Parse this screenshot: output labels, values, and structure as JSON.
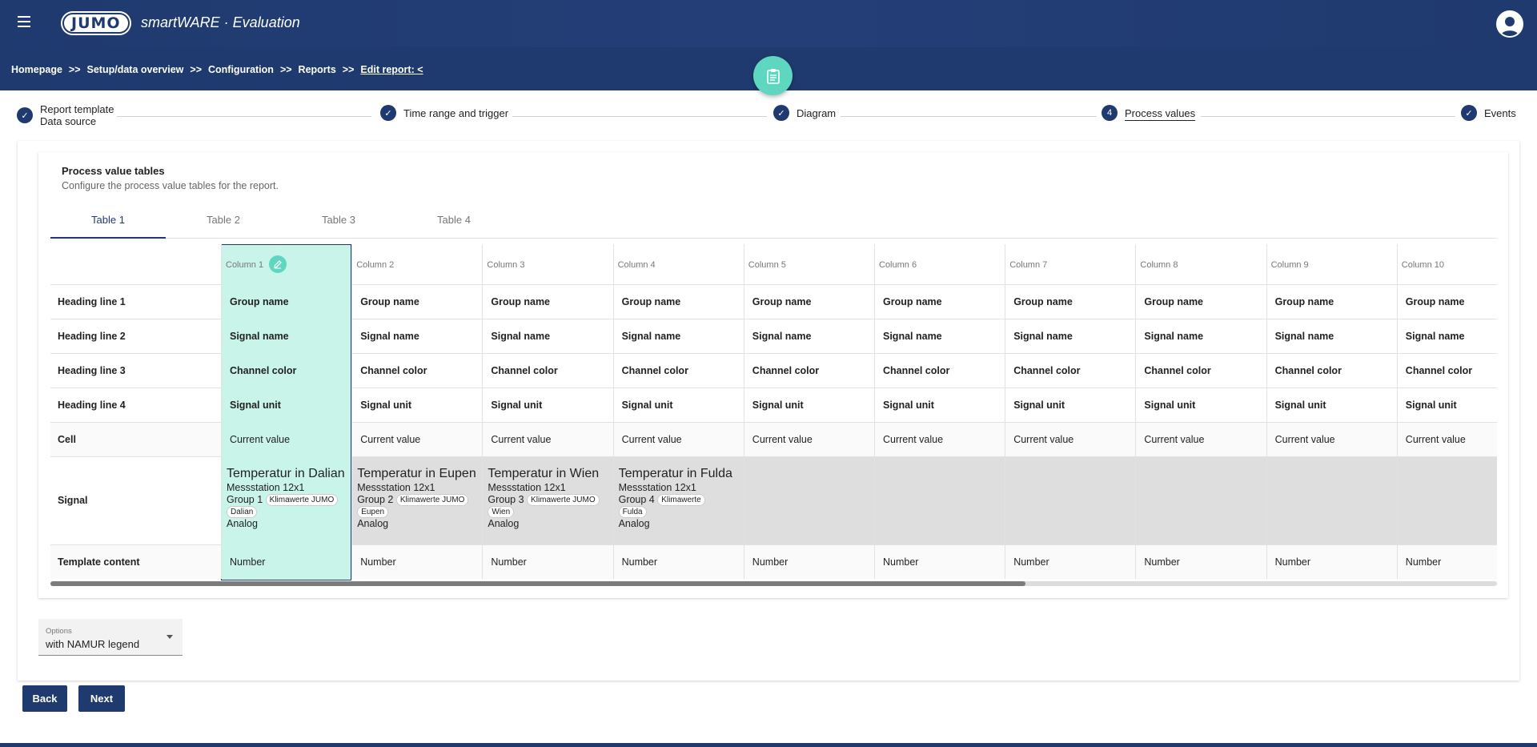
{
  "header": {
    "logo": "JUMO",
    "app_title": "smartWARE · Evaluation"
  },
  "breadcrumb": {
    "items": [
      "Homepage",
      "Setup/data overview",
      "Configuration",
      "Reports"
    ],
    "separator": ">>",
    "current": "Edit report: <"
  },
  "stepper": {
    "steps": [
      {
        "label": "Report template",
        "label2": "Data source",
        "state": "done"
      },
      {
        "label": "Time range and trigger",
        "state": "done"
      },
      {
        "label": "Diagram",
        "state": "done"
      },
      {
        "number": "4",
        "label": "Process values",
        "state": "active"
      },
      {
        "label": "Events",
        "state": "done"
      }
    ]
  },
  "section": {
    "title": "Process value tables",
    "subtitle": "Configure the process value tables for the report."
  },
  "tabs": [
    "Table 1",
    "Table 2",
    "Table 3",
    "Table 4"
  ],
  "active_tab": "Table 1",
  "table": {
    "columns": [
      "Column 1",
      "Column 2",
      "Column 3",
      "Column 4",
      "Column 5",
      "Column 6",
      "Column 7",
      "Column 8",
      "Column 9",
      "Column 10"
    ],
    "rows": {
      "heading1": {
        "label": "Heading line 1",
        "value": "Group name"
      },
      "heading2": {
        "label": "Heading line 2",
        "value": "Signal name"
      },
      "heading3": {
        "label": "Heading line 3",
        "value": "Channel color"
      },
      "heading4": {
        "label": "Heading line 4",
        "value": "Signal unit"
      },
      "cell": {
        "label": "Cell",
        "value": "Current value"
      },
      "signal": {
        "label": "Signal"
      },
      "template": {
        "label": "Template content",
        "value": "Number"
      }
    },
    "signals": [
      {
        "name": "Temperatur in Dalian",
        "station": "Messstation 12x1",
        "group": "Group 1",
        "chip1": "Klimawerte JUMO",
        "chip2": "Dalian",
        "type": "Analog"
      },
      {
        "name": "Temperatur in Eupen",
        "station": "Messstation 12x1",
        "group": "Group 2",
        "chip1": "Klimawerte JUMO",
        "chip2": "Eupen",
        "type": "Analog"
      },
      {
        "name": "Temperatur in Wien",
        "station": "Messstation 12x1",
        "group": "Group 3",
        "chip1": "Klimawerte JUMO",
        "chip2": "Wien",
        "type": "Analog"
      },
      {
        "name": "Temperatur in Fulda",
        "station": "Messstation 12x1",
        "group": "Group 4",
        "chip1": "Klimawerte",
        "chip2": "Fulda",
        "type": "Analog"
      }
    ],
    "selected_column": "Column 1"
  },
  "options": {
    "label": "Options",
    "value": "with NAMUR legend"
  },
  "buttons": {
    "back": "Back",
    "next": "Next"
  },
  "colors": {
    "primary": "#1f3a6e",
    "accent": "#5fd6bf",
    "selected": "#c9f4e9",
    "signal_bg": "#dedede"
  }
}
